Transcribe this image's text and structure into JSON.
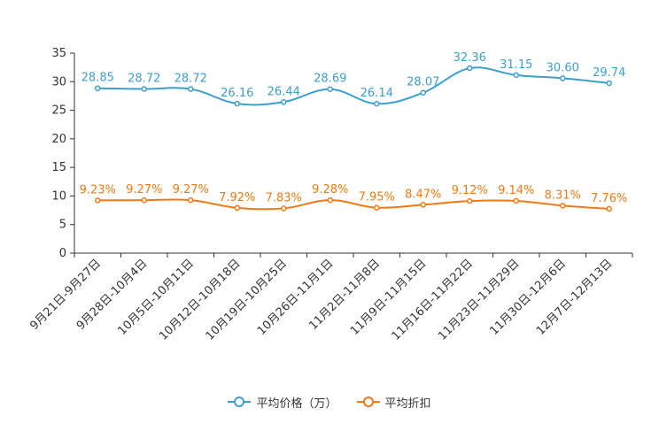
{
  "chart_data": {
    "type": "line",
    "categories": [
      "9月21日-9月27日",
      "9月28日-10月4日",
      "10月5日-10月11日",
      "10月12日-10月18日",
      "10月19日-10月25日",
      "10月26日-11月1日",
      "11月2日-11月8日",
      "11月9日-11月15日",
      "11月16日-11月22日",
      "11月23日-11月29日",
      "11月30日-12月6日",
      "12月7日-12月13日"
    ],
    "series": [
      {
        "name": "平均价格（万）",
        "color": "#3c9fd0",
        "values": [
          28.85,
          28.72,
          28.72,
          26.16,
          26.44,
          28.69,
          26.14,
          28.07,
          32.36,
          31.15,
          30.6,
          29.74
        ],
        "labels": [
          "28.85",
          "28.72",
          "28.72",
          "26.16",
          "26.44",
          "28.69",
          "26.14",
          "28.07",
          "32.36",
          "31.15",
          "30.60",
          "29.74"
        ]
      },
      {
        "name": "平均折扣",
        "color": "#f27a14",
        "values": [
          9.23,
          9.27,
          9.27,
          7.92,
          7.83,
          9.28,
          7.95,
          8.47,
          9.12,
          9.14,
          8.31,
          7.76
        ],
        "labels": [
          "9.23%",
          "9.27%",
          "9.27%",
          "7.92%",
          "7.83%",
          "9.28%",
          "7.95%",
          "8.47%",
          "9.12%",
          "9.14%",
          "8.31%",
          "7.76%"
        ]
      }
    ],
    "yticks": [
      "0",
      "5",
      "10",
      "15",
      "20",
      "25",
      "30",
      "35"
    ],
    "ylim": [
      0,
      35
    ],
    "title": "",
    "xlabel": "",
    "ylabel": "",
    "legend_position": "bottom-center"
  },
  "legend": {
    "items": [
      {
        "label": "平均价格（万）",
        "color": "#3c9fd0"
      },
      {
        "label": "平均折扣",
        "color": "#f27a14"
      }
    ]
  }
}
